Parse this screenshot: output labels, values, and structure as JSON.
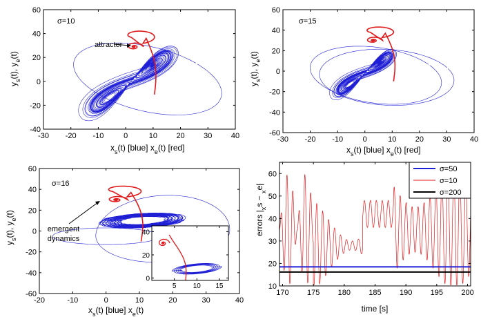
{
  "chart_data": [
    {
      "type": "line",
      "annotation": "σ=10",
      "annotation2": "attractor",
      "xlabel_parts": [
        "x",
        "s",
        "(t) [blue]  ",
        "x",
        "e",
        "(t) [red]"
      ],
      "ylabel_parts": [
        "y",
        "s",
        "(t),  ",
        "y",
        "e",
        "(t)"
      ],
      "xlim": [
        -30,
        40
      ],
      "ylim": [
        -40,
        60
      ],
      "xticks": [
        -30,
        -20,
        -10,
        0,
        10,
        20,
        30,
        40
      ],
      "yticks": [
        -40,
        -20,
        0,
        20,
        40,
        60
      ],
      "series": [
        {
          "color": "#1f1fd6",
          "style": "blue-lorenz",
          "center": [
            5,
            10
          ],
          "spread": [
            20,
            25
          ]
        },
        {
          "color": "#e0191b",
          "style": "red-spiral",
          "center": [
            3,
            29
          ]
        }
      ]
    },
    {
      "type": "line",
      "annotation": "σ=15",
      "xlabel_parts": [
        "x",
        "s",
        "(t) [blue]  ",
        "x",
        "e",
        "(t) [red]"
      ],
      "ylabel_parts": [
        "y",
        "s",
        "(t),  ",
        "y",
        "e",
        "(t)"
      ],
      "xlim": [
        -30,
        40
      ],
      "ylim": [
        -60,
        60
      ],
      "xticks": [
        -30,
        -20,
        -10,
        0,
        10,
        20,
        30,
        40
      ],
      "yticks": [
        -60,
        -40,
        -20,
        0,
        20,
        40,
        60
      ],
      "series": [
        {
          "color": "#1f1fd6",
          "style": "blue-lorenz",
          "center": [
            0,
            0
          ],
          "spread": [
            15,
            18
          ]
        },
        {
          "color": "#e0191b",
          "style": "red-spiral",
          "center": [
            3,
            30
          ]
        }
      ]
    },
    {
      "type": "line",
      "annotation": "σ=16",
      "annotation2": "emergent dynamics",
      "xlabel_parts": [
        "x",
        "s",
        "(t) [blue]  ",
        "x",
        "e",
        "(t)"
      ],
      "ylabel_parts": [
        "y",
        "s",
        "(t),  ",
        "y",
        "e",
        "(t)"
      ],
      "xlim": [
        -20,
        40
      ],
      "ylim": [
        -60,
        60
      ],
      "xticks": [
        -20,
        -10,
        0,
        10,
        20,
        30,
        40
      ],
      "yticks": [
        -60,
        -40,
        -20,
        0,
        20,
        40,
        60
      ],
      "inset": {
        "xlim": [
          0,
          17
        ],
        "ylim": [
          -2,
          45
        ],
        "xticks": [
          5,
          10,
          15
        ],
        "yticks": [
          0,
          20,
          40
        ]
      },
      "series": [
        {
          "color": "#1f1fd6",
          "style": "blue-emergent"
        },
        {
          "color": "#e0191b",
          "style": "red-spiral",
          "center": [
            3,
            30
          ]
        }
      ]
    },
    {
      "type": "line",
      "xlabel": "time [s]",
      "ylabel_parts": [
        "errors |",
        "x",
        "s",
        " − ",
        "x",
        "e",
        "|"
      ],
      "xlim": [
        169.5,
        200.5
      ],
      "ylim": [
        10,
        65
      ],
      "xticks": [
        170,
        175,
        180,
        185,
        190,
        195,
        200
      ],
      "yticks": [
        10,
        20,
        30,
        40,
        50,
        60
      ],
      "legend_position": "top-right",
      "series": [
        {
          "name": "σ=50",
          "color": "#1f1fd6",
          "x": [
            169.5,
            200.5
          ],
          "y": [
            18.5,
            18.5
          ]
        },
        {
          "name": "σ=10",
          "color": "#e0191b",
          "style": "oscillating"
        },
        {
          "name": "σ=200",
          "color": "#000000",
          "x": [
            169.5,
            200.5
          ],
          "y": [
            16.2,
            16.2
          ]
        }
      ]
    }
  ]
}
